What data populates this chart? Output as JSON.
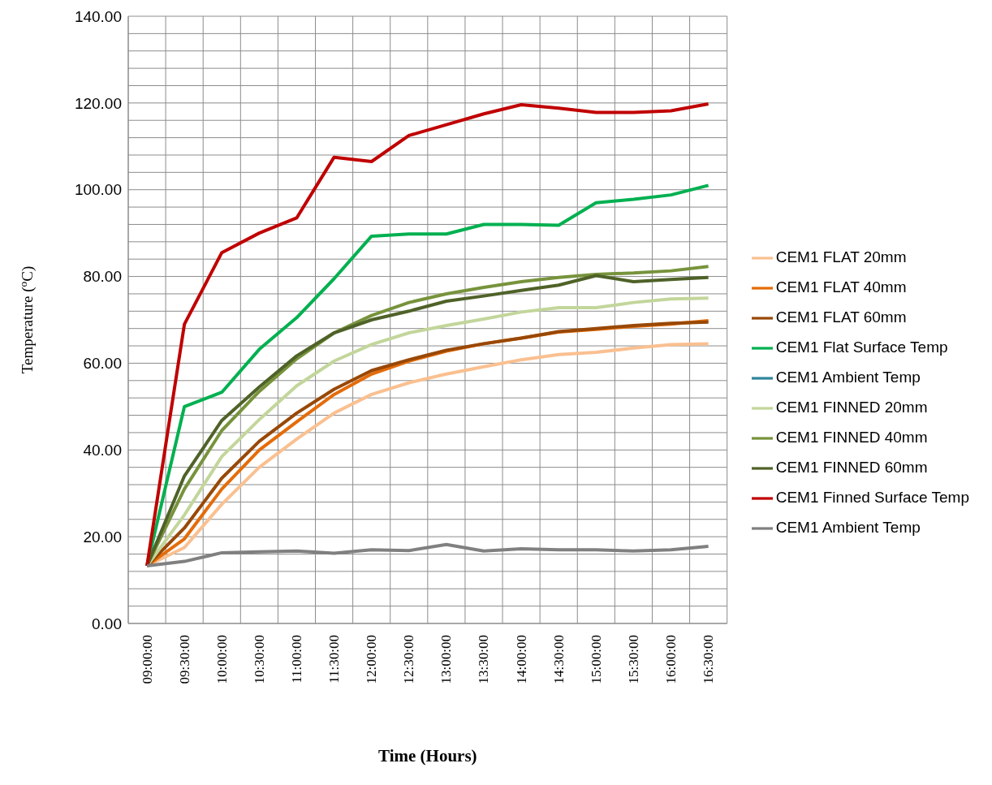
{
  "chart_data": {
    "type": "line",
    "xlabel": "Time (Hours)",
    "ylabel": "Temperature ($^{o}$C)",
    "categories": [
      "09:00:00",
      "09:30:00",
      "10:00:00",
      "10:30:00",
      "11:00:00",
      "11:30:00",
      "12:00:00",
      "12:30:00",
      "13:00:00",
      "13:30:00",
      "14:00:00",
      "14:30:00",
      "15:00:00",
      "15:30:00",
      "16:00:00",
      "16:30:00"
    ],
    "ylim": [
      0,
      140
    ],
    "yticks": [
      {
        "value": 0,
        "label": "0.00"
      },
      {
        "value": 4,
        "label": null
      },
      {
        "value": 8,
        "label": null
      },
      {
        "value": 12,
        "label": null
      },
      {
        "value": 16,
        "label": null
      },
      {
        "value": 20,
        "label": "20.00"
      },
      {
        "value": 24,
        "label": null
      },
      {
        "value": 28,
        "label": null
      },
      {
        "value": 32,
        "label": null
      },
      {
        "value": 36,
        "label": null
      },
      {
        "value": 40,
        "label": "40.00"
      },
      {
        "value": 44,
        "label": null
      },
      {
        "value": 48,
        "label": null
      },
      {
        "value": 52,
        "label": null
      },
      {
        "value": 56,
        "label": null
      },
      {
        "value": 60,
        "label": "60.00"
      },
      {
        "value": 64,
        "label": null
      },
      {
        "value": 68,
        "label": null
      },
      {
        "value": 72,
        "label": null
      },
      {
        "value": 76,
        "label": null
      },
      {
        "value": 80,
        "label": "80.00"
      },
      {
        "value": 84,
        "label": null
      },
      {
        "value": 88,
        "label": null
      },
      {
        "value": 92,
        "label": null
      },
      {
        "value": 96,
        "label": null
      },
      {
        "value": 100,
        "label": "100.00"
      },
      {
        "value": 104,
        "label": null
      },
      {
        "value": 108,
        "label": null
      },
      {
        "value": 112,
        "label": null
      },
      {
        "value": 116,
        "label": null
      },
      {
        "value": 120,
        "label": "120.00"
      },
      {
        "value": 124,
        "label": null
      },
      {
        "value": 128,
        "label": null
      },
      {
        "value": 132,
        "label": null
      },
      {
        "value": 136,
        "label": null
      },
      {
        "value": 140,
        "label": "140.00"
      }
    ],
    "grid": true,
    "legend": "right",
    "marker": "none",
    "line_style": "solid",
    "series": [
      {
        "name": "CEM1 FLAT 20mm",
        "color": "#fac090",
        "values": [
          13.3,
          17.5,
          27.5,
          36,
          42.5,
          48.5,
          52.8,
          55.5,
          57.5,
          59.2,
          60.8,
          62,
          62.5,
          63.5,
          64.3,
          64.5
        ]
      },
      {
        "name": "CEM1 FLAT 40mm",
        "color": "#e46c0a",
        "values": [
          13.3,
          19.5,
          31,
          40,
          46.5,
          52.8,
          57.5,
          60.5,
          62.8,
          64.5,
          65.8,
          67.2,
          67.8,
          68.5,
          69,
          69.8
        ]
      },
      {
        "name": "CEM1 FLAT 60mm",
        "color": "#984807",
        "values": [
          13.3,
          22,
          33.5,
          42,
          48.5,
          54,
          58.3,
          60.8,
          63,
          64.5,
          65.8,
          67.3,
          68,
          68.7,
          69.2,
          69.5
        ]
      },
      {
        "name": "CEM1 Flat Surface Temp",
        "color": "#00b050",
        "values": [
          13.3,
          50,
          53.3,
          63.2,
          70.5,
          79.5,
          89.3,
          89.8,
          89.8,
          92,
          92,
          91.8,
          97,
          97.8,
          98.8,
          101
        ]
      },
      {
        "name": "CEM1 Ambient Temp",
        "color": "#31859c",
        "values": [
          null,
          null,
          null,
          null,
          null,
          null,
          null,
          null,
          null,
          null,
          null,
          null,
          null,
          null,
          null,
          null
        ]
      },
      {
        "name": "CEM1 FINNED 20mm",
        "color": "#c3d69b",
        "values": [
          13.3,
          25,
          38.5,
          47,
          54.8,
          60.5,
          64.3,
          67,
          68.7,
          70.2,
          71.8,
          72.8,
          72.8,
          74,
          74.8,
          75
        ]
      },
      {
        "name": "CEM1 FINNED 40mm",
        "color": "#77933c",
        "values": [
          13.3,
          31,
          44.5,
          53.5,
          61,
          67,
          71,
          74,
          76,
          77.5,
          78.8,
          79.8,
          80.5,
          80.8,
          81.3,
          82.3
        ]
      },
      {
        "name": "CEM1 FINNED 60mm",
        "color": "#4f6228",
        "values": [
          13.3,
          34,
          46.8,
          54.5,
          61.7,
          67,
          70,
          72,
          74.3,
          75.5,
          76.8,
          78,
          80.2,
          78.8,
          79.3,
          79.8
        ]
      },
      {
        "name": "CEM1 Finned Surface Temp",
        "color": "#c00000",
        "values": [
          13.3,
          69,
          85.5,
          90,
          93.5,
          107.5,
          106.5,
          112.5,
          115,
          117.5,
          119.6,
          118.8,
          117.8,
          117.8,
          118.2,
          119.8
        ]
      },
      {
        "name": "CEM1 Ambient Temp",
        "color": "#808080",
        "values": [
          13.3,
          14.3,
          16.3,
          16.5,
          16.7,
          16.2,
          17,
          16.8,
          18.2,
          16.7,
          17.2,
          17,
          17,
          16.7,
          17,
          17.8
        ]
      }
    ]
  }
}
